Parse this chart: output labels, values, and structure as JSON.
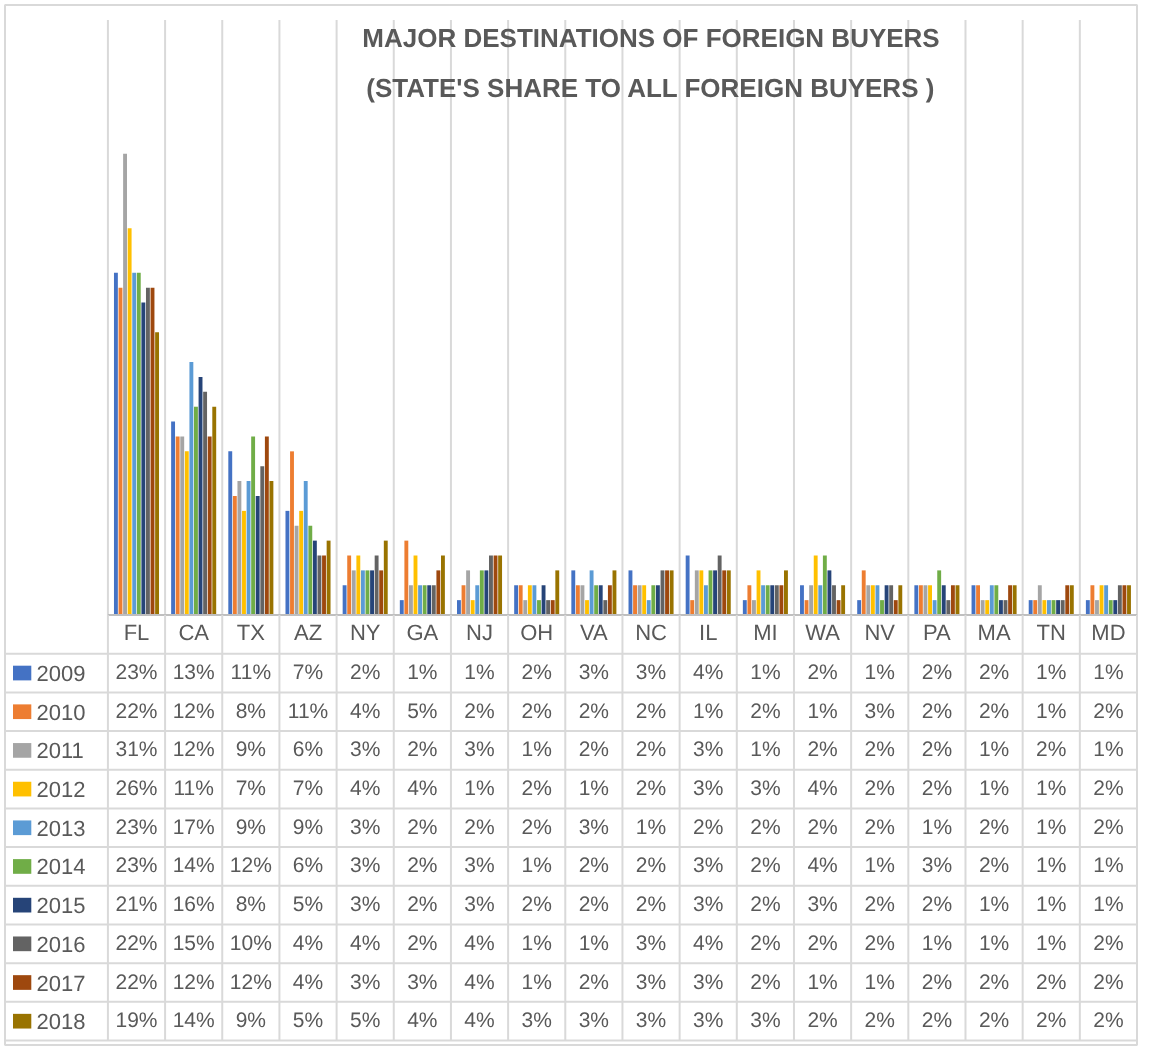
{
  "chart_data": {
    "type": "bar",
    "title": "MAJOR DESTINATIONS OF FOREIGN BUYERS",
    "subtitle": "(STATE'S SHARE TO ALL FOREIGN BUYERS )",
    "categories": [
      "FL",
      "CA",
      "TX",
      "AZ",
      "NY",
      "GA",
      "NJ",
      "OH",
      "VA",
      "NC",
      "IL",
      "MI",
      "WA",
      "NV",
      "PA",
      "MA",
      "TN",
      "MD"
    ],
    "grid": "x",
    "legend": "bottom",
    "series": [
      {
        "name": "2009",
        "color": "#4472c4",
        "values": [
          23,
          13,
          11,
          7,
          2,
          1,
          1,
          2,
          3,
          3,
          4,
          1,
          2,
          1,
          2,
          2,
          1,
          1
        ],
        "value_labels": [
          "23%",
          "13%",
          "11%",
          "7%",
          "2%",
          "1%",
          "1%",
          "2%",
          "3%",
          "3%",
          "4%",
          "1%",
          "2%",
          "1%",
          "2%",
          "2%",
          "1%",
          "1%"
        ]
      },
      {
        "name": "2010",
        "color": "#ed7d31",
        "values": [
          22,
          12,
          8,
          11,
          4,
          5,
          2,
          2,
          2,
          2,
          1,
          2,
          1,
          3,
          2,
          2,
          1,
          2
        ],
        "value_labels": [
          "22%",
          "12%",
          "8%",
          "11%",
          "4%",
          "5%",
          "2%",
          "2%",
          "2%",
          "2%",
          "1%",
          "2%",
          "1%",
          "3%",
          "2%",
          "2%",
          "1%",
          "2%"
        ]
      },
      {
        "name": "2011",
        "color": "#a5a5a5",
        "values": [
          31,
          12,
          9,
          6,
          3,
          2,
          3,
          1,
          2,
          2,
          3,
          1,
          2,
          2,
          2,
          1,
          2,
          1
        ],
        "value_labels": [
          "31%",
          "12%",
          "9%",
          "6%",
          "3%",
          "2%",
          "3%",
          "1%",
          "2%",
          "2%",
          "3%",
          "1%",
          "2%",
          "2%",
          "2%",
          "1%",
          "2%",
          "1%"
        ]
      },
      {
        "name": "2012",
        "color": "#ffc000",
        "values": [
          26,
          11,
          7,
          7,
          4,
          4,
          1,
          2,
          1,
          2,
          3,
          3,
          4,
          2,
          2,
          1,
          1,
          2
        ],
        "value_labels": [
          "26%",
          "11%",
          "7%",
          "7%",
          "4%",
          "4%",
          "1%",
          "2%",
          "1%",
          "2%",
          "3%",
          "3%",
          "4%",
          "2%",
          "2%",
          "1%",
          "1%",
          "2%"
        ]
      },
      {
        "name": "2013",
        "color": "#5b9bd5",
        "values": [
          23,
          17,
          9,
          9,
          3,
          2,
          2,
          2,
          3,
          1,
          2,
          2,
          2,
          2,
          1,
          2,
          1,
          2
        ],
        "value_labels": [
          "23%",
          "17%",
          "9%",
          "9%",
          "3%",
          "2%",
          "2%",
          "2%",
          "3%",
          "1%",
          "2%",
          "2%",
          "2%",
          "2%",
          "1%",
          "2%",
          "1%",
          "2%"
        ]
      },
      {
        "name": "2014",
        "color": "#70ad47",
        "values": [
          23,
          14,
          12,
          6,
          3,
          2,
          3,
          1,
          2,
          2,
          3,
          2,
          4,
          1,
          3,
          2,
          1,
          1
        ],
        "value_labels": [
          "23%",
          "14%",
          "12%",
          "6%",
          "3%",
          "2%",
          "3%",
          "1%",
          "2%",
          "2%",
          "3%",
          "2%",
          "4%",
          "1%",
          "3%",
          "2%",
          "1%",
          "1%"
        ]
      },
      {
        "name": "2015",
        "color": "#264478",
        "values": [
          21,
          16,
          8,
          5,
          3,
          2,
          3,
          2,
          2,
          2,
          3,
          2,
          3,
          2,
          2,
          1,
          1,
          1
        ],
        "value_labels": [
          "21%",
          "16%",
          "8%",
          "5%",
          "3%",
          "2%",
          "3%",
          "2%",
          "2%",
          "2%",
          "3%",
          "2%",
          "3%",
          "2%",
          "2%",
          "1%",
          "1%",
          "1%"
        ]
      },
      {
        "name": "2016",
        "color": "#636363",
        "values": [
          22,
          15,
          10,
          4,
          4,
          2,
          4,
          1,
          1,
          3,
          4,
          2,
          2,
          2,
          1,
          1,
          1,
          2
        ],
        "value_labels": [
          "22%",
          "15%",
          "10%",
          "4%",
          "4%",
          "2%",
          "4%",
          "1%",
          "1%",
          "3%",
          "4%",
          "2%",
          "2%",
          "2%",
          "1%",
          "1%",
          "1%",
          "2%"
        ]
      },
      {
        "name": "2017",
        "color": "#9e480e",
        "values": [
          22,
          12,
          12,
          4,
          3,
          3,
          4,
          1,
          2,
          3,
          3,
          2,
          1,
          1,
          2,
          2,
          2,
          2
        ],
        "value_labels": [
          "22%",
          "12%",
          "12%",
          "4%",
          "3%",
          "3%",
          "4%",
          "1%",
          "2%",
          "3%",
          "3%",
          "2%",
          "1%",
          "1%",
          "2%",
          "2%",
          "2%",
          "2%"
        ]
      },
      {
        "name": "2018",
        "color": "#997300",
        "values": [
          19,
          14,
          9,
          5,
          5,
          4,
          4,
          3,
          3,
          3,
          3,
          3,
          2,
          2,
          2,
          2,
          2,
          2
        ],
        "value_labels": [
          "19%",
          "14%",
          "9%",
          "5%",
          "5%",
          "4%",
          "4%",
          "3%",
          "3%",
          "3%",
          "3%",
          "3%",
          "2%",
          "2%",
          "2%",
          "2%",
          "2%",
          "2%"
        ]
      }
    ]
  }
}
